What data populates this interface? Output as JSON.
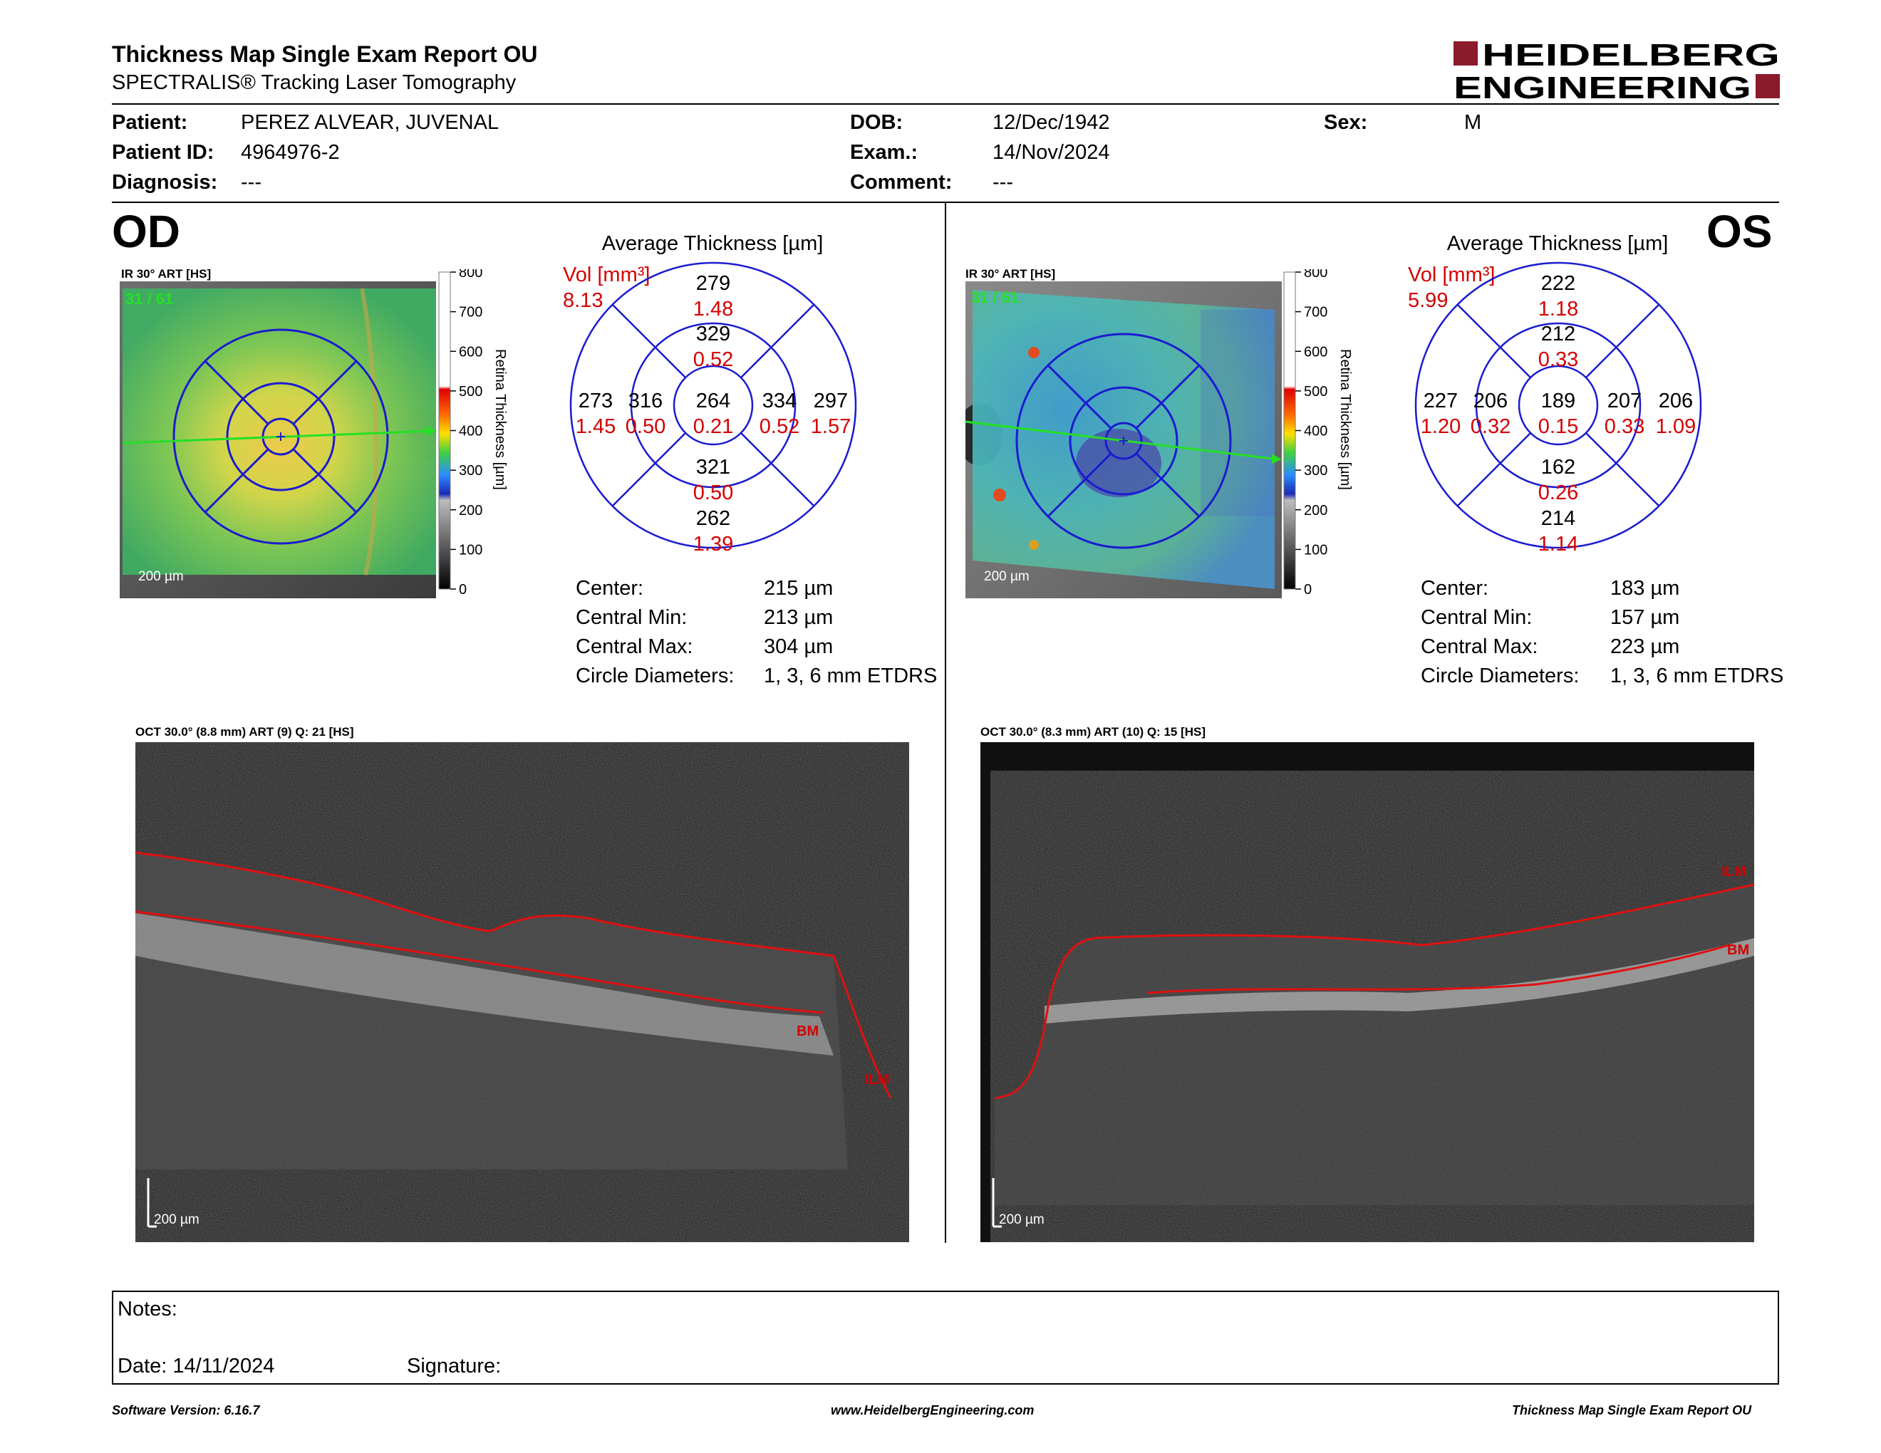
{
  "header": {
    "title": "Thickness Map Single Exam Report OU",
    "subtitle": "SPECTRALIS® Tracking Laser Tomography",
    "logo_line1": "HEIDELBERG",
    "logo_line2": "ENGINEERING",
    "logo_color": "#8b1a2b"
  },
  "patient": {
    "patient_label": "Patient:",
    "patient_value": "PEREZ ALVEAR, JUVENAL",
    "id_label": "Patient ID:",
    "id_value": "4964976-2",
    "diagnosis_label": "Diagnosis:",
    "diagnosis_value": "---",
    "dob_label": "DOB:",
    "dob_value": "12/Dec/1942",
    "exam_label": "Exam.:",
    "exam_value": "14/Nov/2024",
    "comment_label": "Comment:",
    "comment_value": "---",
    "sex_label": "Sex:",
    "sex_value": "M"
  },
  "od": {
    "eye_label": "OD",
    "ir_label": "IR 30° ART [HS]",
    "frames": "31 / 61",
    "scale": "200 µm",
    "colorbar_ticks": [
      "800",
      "700",
      "600",
      "500",
      "400",
      "300",
      "200",
      "100",
      "0"
    ],
    "colorbar_title": "Retina Thickness [µm]",
    "avg_title": "Average Thickness [µm]",
    "vol_label": "Vol [mm³]",
    "vol_value": "8.13",
    "etdrs": {
      "outer_sup": "279",
      "outer_sup_vol": "1.48",
      "inner_sup": "329",
      "inner_sup_vol": "0.52",
      "outer_left": "273",
      "outer_left_vol": "1.45",
      "inner_left": "316",
      "inner_left_vol": "0.50",
      "center": "264",
      "center_vol": "0.21",
      "inner_right": "334",
      "inner_right_vol": "0.52",
      "outer_right": "297",
      "outer_right_vol": "1.57",
      "inner_inf": "321",
      "inner_inf_vol": "0.50",
      "outer_inf": "262",
      "outer_inf_vol": "1.39"
    },
    "stats": {
      "center_label": "Center:",
      "center_value": "215 µm",
      "min_label": "Central Min:",
      "min_value": "213 µm",
      "max_label": "Central Max:",
      "max_value": "304 µm",
      "diam_label": "Circle Diameters:",
      "diam_value": "1, 3, 6 mm ETDRS"
    },
    "oct_label": "OCT 30.0° (8.8 mm) ART (9) Q: 21 [HS]",
    "oct_scale": "200 µm",
    "bm": "BM",
    "ilm": "ILM"
  },
  "os": {
    "eye_label": "OS",
    "ir_label": "IR 30° ART [HS]",
    "frames": "31 / 61",
    "scale": "200 µm",
    "colorbar_ticks": [
      "800",
      "700",
      "600",
      "500",
      "400",
      "300",
      "200",
      "100",
      "0"
    ],
    "colorbar_title": "Retina Thickness [µm]",
    "avg_title": "Average Thickness [µm]",
    "vol_label": "Vol [mm³]",
    "vol_value": "5.99",
    "etdrs": {
      "outer_sup": "222",
      "outer_sup_vol": "1.18",
      "inner_sup": "212",
      "inner_sup_vol": "0.33",
      "outer_left": "227",
      "outer_left_vol": "1.20",
      "inner_left": "206",
      "inner_left_vol": "0.32",
      "center": "189",
      "center_vol": "0.15",
      "inner_right": "207",
      "inner_right_vol": "0.33",
      "outer_right": "206",
      "outer_right_vol": "1.09",
      "inner_inf": "162",
      "inner_inf_vol": "0.26",
      "outer_inf": "214",
      "outer_inf_vol": "1.14"
    },
    "stats": {
      "center_label": "Center:",
      "center_value": "183 µm",
      "min_label": "Central Min:",
      "min_value": "157 µm",
      "max_label": "Central Max:",
      "max_value": "223 µm",
      "diam_label": "Circle Diameters:",
      "diam_value": "1, 3, 6 mm ETDRS"
    },
    "oct_label": "OCT 30.0° (8.3 mm) ART (10) Q: 15 [HS]",
    "oct_scale": "200 µm",
    "bm": "BM",
    "ilm": "ILM"
  },
  "notes": {
    "notes_label": "Notes:",
    "date_label": "Date: 14/11/2024",
    "signature_label": "Signature:"
  },
  "footer": {
    "software": "Software Version: 6.16.7",
    "website": "www.HeidelbergEngineering.com",
    "report": "Thickness Map Single Exam Report OU"
  }
}
